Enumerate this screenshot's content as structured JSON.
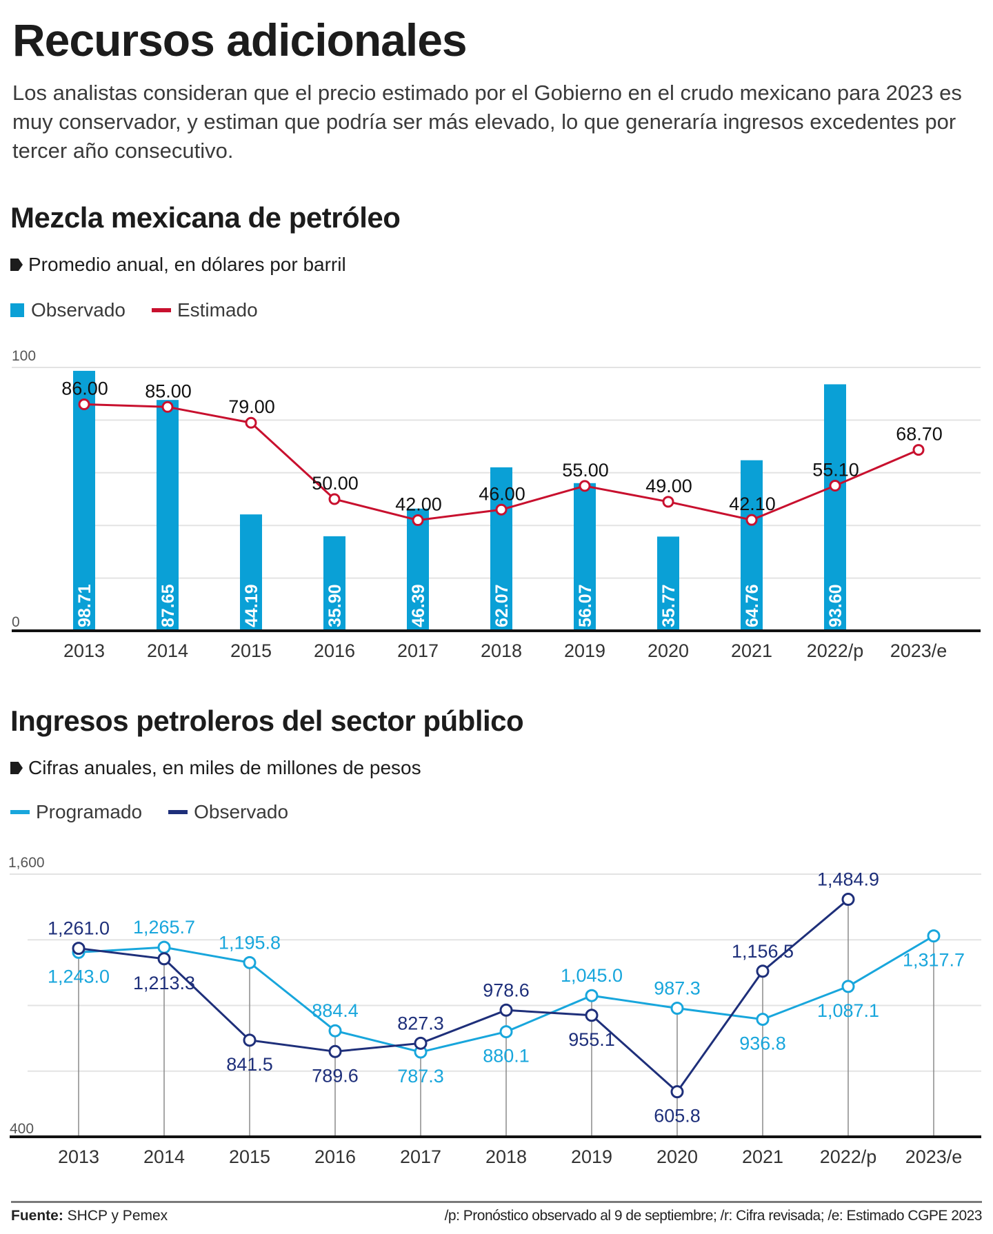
{
  "header": {
    "title": "Recursos adicionales",
    "intro": "Los analistas consideran que el precio estimado por el Gobierno en el crudo mexicano para 2023 es muy conservador, y estiman que podría ser más elevado, lo que generaría ingresos excedentes por tercer año consecutivo."
  },
  "colors": {
    "bar_blue": "#0aa0d6",
    "estimado_red": "#c8102e",
    "programado_light_blue": "#18a6dc",
    "observado_navy": "#1e2f7a",
    "gridline": "#e3e3e3",
    "axis": "#111111"
  },
  "chart_data": [
    {
      "type": "bar",
      "title": "Mezcla mexicana de petróleo",
      "subtitle": "Promedio anual, en dólares por barril",
      "categories": [
        "2013",
        "2014",
        "2015",
        "2016",
        "2017",
        "2018",
        "2019",
        "2020",
        "2021",
        "2022/p",
        "2023/e"
      ],
      "series": [
        {
          "name": "Observado",
          "kind": "bar",
          "values": [
            98.71,
            87.65,
            44.19,
            35.9,
            46.39,
            62.07,
            56.07,
            35.77,
            64.76,
            93.6,
            null
          ],
          "labels": [
            "98.71",
            "87.65",
            "44.19",
            "35.90",
            "46.39",
            "62.07",
            "56.07",
            "35.77",
            "64.76",
            "93.60",
            ""
          ]
        },
        {
          "name": "Estimado",
          "kind": "line",
          "values": [
            86.0,
            85.0,
            79.0,
            50.0,
            42.0,
            46.0,
            55.0,
            49.0,
            42.1,
            55.1,
            68.7
          ],
          "labels": [
            "86.00",
            "85.00",
            "79.00",
            "50.00",
            "42.00",
            "46.00",
            "55.00",
            "49.00",
            "42.10",
            "55.10",
            "68.70"
          ]
        }
      ],
      "yaxis": {
        "min": 0,
        "max": 100,
        "tick_labels": [
          "100",
          "0"
        ],
        "gridlines": [
          0,
          20,
          40,
          60,
          80,
          100
        ]
      },
      "xlabel": "",
      "ylabel": "",
      "legend": [
        "Observado",
        "Estimado"
      ],
      "legend_position": "top-left",
      "grid": true
    },
    {
      "type": "line",
      "title": "Ingresos petroleros del sector público",
      "subtitle": "Cifras anuales, en miles de millones de pesos",
      "categories": [
        "2013",
        "2014",
        "2015",
        "2016",
        "2017",
        "2018",
        "2019",
        "2020",
        "2021",
        "2022/p",
        "2023/e"
      ],
      "series": [
        {
          "name": "Programado",
          "values": [
            1243.0,
            1265.7,
            1195.8,
            884.4,
            787.3,
            880.1,
            1045.0,
            987.3,
            936.8,
            1087.1,
            1317.7
          ],
          "labels": [
            "1,243.0",
            "1,265.7",
            "1,195.8",
            "884.4",
            "787.3",
            "880.1",
            "1,045.0",
            "987.3",
            "936.8",
            "1,087.1",
            "1,317.7"
          ],
          "label_pos": [
            "below",
            "above",
            "above",
            "above",
            "below",
            "below",
            "above",
            "above",
            "below",
            "below",
            "below"
          ]
        },
        {
          "name": "Observado",
          "values": [
            1261.0,
            1213.3,
            841.5,
            789.6,
            827.3,
            978.6,
            955.1,
            605.8,
            1156.5,
            1484.9,
            null
          ],
          "labels": [
            "1,261.0",
            "1,213.3",
            "841.5",
            "789.6",
            "827.3",
            "978.6",
            "955.1",
            "605.8",
            "1,156.5",
            "1,484.9",
            ""
          ],
          "label_pos": [
            "above",
            "below",
            "below",
            "below",
            "above",
            "above",
            "below",
            "below",
            "above",
            "above",
            ""
          ]
        }
      ],
      "yaxis": {
        "min": 400,
        "max": 1600,
        "tick_labels": [
          "1,600",
          "400"
        ],
        "gridlines": [
          400,
          700,
          1000,
          1300,
          1600
        ]
      },
      "xlabel": "",
      "ylabel": "",
      "legend": [
        "Programado",
        "Observado"
      ],
      "legend_position": "top-left",
      "grid": true
    }
  ],
  "footer": {
    "source_label": "Fuente:",
    "source_value": "SHCP y Pemex",
    "notes": "/p: Pronóstico observado al 9 de septiembre; /r: Cifra revisada; /e: Estimado CGPE 2023"
  }
}
